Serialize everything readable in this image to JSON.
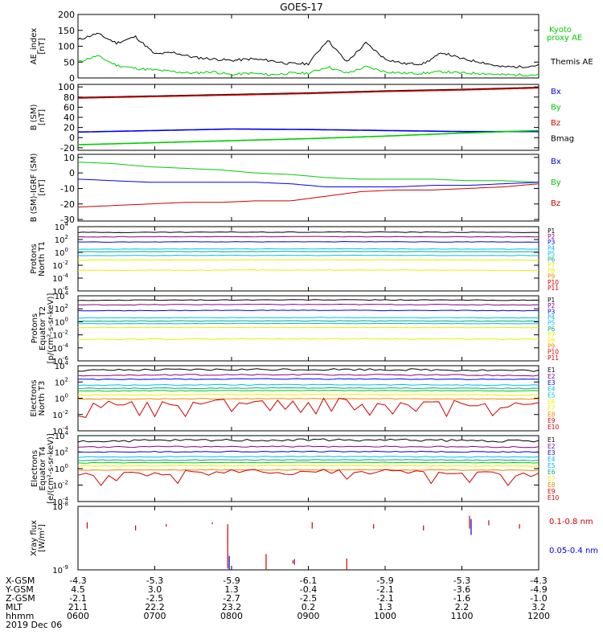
{
  "title": "GOES-17",
  "date_label": "2019 Dec 06",
  "colors": {
    "black": "#000000",
    "green": "#00cc00",
    "blue": "#0000ee",
    "red": "#cc0000",
    "purple": "#880088",
    "cyan": "#00bbee",
    "teal": "#00aa88",
    "yellow": "#eeee00",
    "orange": "#ee8800"
  },
  "chart_data": [
    {
      "type": "line",
      "ylabel": [
        "AE_index",
        "[nT]"
      ],
      "ylim": [
        0,
        200
      ],
      "yticks": [
        "200",
        "150",
        "100",
        "50",
        "0"
      ],
      "legend": [
        {
          "name": "Kyoto",
          "color": "#00cc00"
        },
        {
          "name": "proxy AE",
          "color": "#00cc00"
        },
        {
          "name": "Themis AE",
          "color": "#000000"
        }
      ],
      "x": [
        6.0,
        6.25,
        6.5,
        6.75,
        7.0,
        7.25,
        7.5,
        7.75,
        8.0,
        8.25,
        8.5,
        8.75,
        9.0,
        9.25,
        9.5,
        9.75,
        10.0,
        10.25,
        10.5,
        10.75,
        11.0,
        11.25,
        11.5,
        11.75,
        12.0
      ],
      "series": [
        {
          "color": "#000000",
          "values": [
            120,
            140,
            110,
            130,
            75,
            80,
            65,
            60,
            55,
            60,
            55,
            45,
            45,
            120,
            50,
            110,
            60,
            45,
            45,
            80,
            60,
            50,
            35,
            35,
            40
          ]
        },
        {
          "color": "#00cc00",
          "values": [
            50,
            70,
            40,
            30,
            25,
            20,
            15,
            20,
            10,
            15,
            10,
            15,
            15,
            35,
            15,
            35,
            20,
            15,
            15,
            20,
            15,
            15,
            10,
            10,
            10
          ]
        }
      ]
    },
    {
      "type": "line",
      "ylabel": [
        "B (SM)",
        "[nT]"
      ],
      "ylim": [
        -25,
        105
      ],
      "yticks": [
        "100",
        "80",
        "60",
        "40",
        "20",
        "0",
        "-20"
      ],
      "legend": [
        {
          "name": "Bx",
          "color": "#0000ee"
        },
        {
          "name": "By",
          "color": "#00cc00"
        },
        {
          "name": "Bz",
          "color": "#cc0000"
        },
        {
          "name": "Bmag",
          "color": "#000000"
        }
      ],
      "x": [
        6.0,
        7.0,
        8.0,
        9.0,
        10.0,
        11.0,
        12.0
      ],
      "series": [
        {
          "color": "#000000",
          "values": [
            79,
            82,
            85,
            88,
            92,
            95,
            99
          ]
        },
        {
          "color": "#cc0000",
          "values": [
            78,
            81,
            84,
            87,
            91,
            94,
            98
          ]
        },
        {
          "color": "#0000ee",
          "values": [
            11,
            14,
            17,
            16,
            14,
            12,
            12
          ]
        },
        {
          "color": "#00cc00",
          "values": [
            -14,
            -10,
            -6,
            -2,
            3,
            9,
            14
          ]
        }
      ]
    },
    {
      "type": "line",
      "ylabel": [
        "B (SM)-IGRF (SM)",
        "[nT]"
      ],
      "ylim": [
        -31,
        12
      ],
      "yticks": [
        "10",
        "0",
        "-10",
        "-20",
        "-30"
      ],
      "legend": [
        {
          "name": "Bx",
          "color": "#0000ee"
        },
        {
          "name": "By",
          "color": "#00cc00"
        },
        {
          "name": "Bz",
          "color": "#cc0000"
        }
      ],
      "x": [
        6.0,
        6.5,
        7.0,
        7.5,
        8.0,
        8.5,
        8.75,
        9.0,
        9.5,
        10.0,
        10.5,
        11.0,
        11.5,
        12.0
      ],
      "series": [
        {
          "color": "#00cc00",
          "values": [
            7,
            6,
            4,
            3,
            2,
            0,
            -1,
            -3,
            -4,
            -4,
            -4,
            -5,
            -5,
            -6
          ]
        },
        {
          "color": "#0000ee",
          "values": [
            -4,
            -5,
            -6,
            -6,
            -6,
            -6,
            -7,
            -9,
            -9,
            -9,
            -8,
            -8,
            -7,
            -6
          ]
        },
        {
          "color": "#cc0000",
          "values": [
            -22,
            -21,
            -20,
            -19,
            -19,
            -18,
            -18,
            -15,
            -12,
            -11,
            -11,
            -10,
            -9,
            -7
          ]
        }
      ]
    },
    {
      "type": "line",
      "log": true,
      "ylabel": [
        "Protons",
        "North T1"
      ],
      "ylim_exp": [
        -6,
        4
      ],
      "ytick_exps": [
        4,
        2,
        0,
        -2,
        -4,
        -6
      ],
      "legend": [
        {
          "name": "P1",
          "color": "#000000"
        },
        {
          "name": "P2",
          "color": "#880088"
        },
        {
          "name": "P3",
          "color": "#0000ee"
        },
        {
          "name": "P4",
          "color": "#00bbee"
        },
        {
          "name": "P5",
          "color": "#00bbee"
        },
        {
          "name": "P6",
          "color": "#00aa88"
        },
        {
          "name": "P7",
          "color": "#eeee00"
        },
        {
          "name": "P8",
          "color": "#eeee00"
        },
        {
          "name": "P9",
          "color": "#ee8800"
        },
        {
          "name": "P10",
          "color": "#cc0000"
        },
        {
          "name": "P11",
          "color": "#cc0000"
        }
      ],
      "series": [
        {
          "color": "#000000",
          "level": 3.1,
          "amp": 0.1
        },
        {
          "color": "#880088",
          "level": 2.4,
          "amp": 0.08
        },
        {
          "color": "#0000ee",
          "level": 1.6,
          "amp": 0.08
        },
        {
          "color": "#00bbee",
          "level": 0.5,
          "amp": 0.06
        },
        {
          "color": "#00aa88",
          "level": 0.1,
          "amp": 0.06
        },
        {
          "color": "#00bbee",
          "level": -0.5,
          "amp": 0.06
        },
        {
          "color": "#eeee00",
          "level": -1.2,
          "amp": 0.06
        },
        {
          "color": "#eeee00",
          "level": -2.8,
          "amp": 0.1
        }
      ]
    },
    {
      "type": "line",
      "log": true,
      "ylabel": [
        "Protons",
        "Equator T2",
        "[p/(cm²-s-sr-keV)]"
      ],
      "ylim_exp": [
        -6,
        4
      ],
      "ytick_exps": [
        4,
        2,
        0,
        -2,
        -4,
        -6
      ],
      "legend": [
        {
          "name": "P1",
          "color": "#000000"
        },
        {
          "name": "P2",
          "color": "#880088"
        },
        {
          "name": "P3",
          "color": "#0000ee"
        },
        {
          "name": "P4",
          "color": "#00bbee"
        },
        {
          "name": "P5",
          "color": "#00bbee"
        },
        {
          "name": "P6",
          "color": "#00aa88"
        },
        {
          "name": "P7",
          "color": "#eeee00"
        },
        {
          "name": "P8",
          "color": "#eeee00"
        },
        {
          "name": "P9",
          "color": "#ee8800"
        },
        {
          "name": "P10",
          "color": "#cc0000"
        },
        {
          "name": "P11",
          "color": "#cc0000"
        }
      ],
      "series": [
        {
          "color": "#000000",
          "level": 3.3,
          "amp": 0.12
        },
        {
          "color": "#880088",
          "level": 2.6,
          "amp": 0.1
        },
        {
          "color": "#0000ee",
          "level": 1.7,
          "amp": 0.1
        },
        {
          "color": "#00bbee",
          "level": 0.6,
          "amp": 0.08
        },
        {
          "color": "#00aa88",
          "level": 0.1,
          "amp": 0.08
        },
        {
          "color": "#00bbee",
          "level": -0.3,
          "amp": 0.06
        },
        {
          "color": "#eeee00",
          "level": -0.9,
          "amp": 0.06
        },
        {
          "color": "#eeee00",
          "level": -2.7,
          "amp": 0.15
        }
      ]
    },
    {
      "type": "line",
      "log": true,
      "ylabel": [
        "Electrons",
        "North T3"
      ],
      "ylim_exp": [
        -4,
        4
      ],
      "ytick_exps": [
        4,
        2,
        0,
        -2,
        -4
      ],
      "legend": [
        {
          "name": "E1",
          "color": "#000000"
        },
        {
          "name": "E2",
          "color": "#880088"
        },
        {
          "name": "E3",
          "color": "#0000ee"
        },
        {
          "name": "E4",
          "color": "#00bbee"
        },
        {
          "name": "E5",
          "color": "#00bbee"
        },
        {
          "name": "E6",
          "color": "#eeee00"
        },
        {
          "name": "E7",
          "color": "#eeee00"
        },
        {
          "name": "E8",
          "color": "#ee8800"
        },
        {
          "name": "E9",
          "color": "#cc0000"
        },
        {
          "name": "E10",
          "color": "#cc0000"
        }
      ],
      "series": [
        {
          "color": "#000000",
          "level": 3.4,
          "amp": 0.25
        },
        {
          "color": "#880088",
          "level": 2.8,
          "amp": 0.15
        },
        {
          "color": "#0000ee",
          "level": 2.3,
          "amp": 0.12
        },
        {
          "color": "#00bbee",
          "level": 1.6,
          "amp": 0.1
        },
        {
          "color": "#00aa88",
          "level": 1.2,
          "amp": 0.1
        },
        {
          "color": "#00cc00",
          "level": 0.9,
          "amp": 0.08
        },
        {
          "color": "#eeee00",
          "level": 0.4,
          "amp": 0.08
        },
        {
          "color": "#ee8800",
          "level": -0.1,
          "amp": 0.08
        },
        {
          "color": "#cc0000",
          "level": -0.9,
          "amp": 0.9,
          "spiky": true
        }
      ]
    },
    {
      "type": "line",
      "log": true,
      "ylabel": [
        "Electrons",
        "Equator T4",
        "[e/(cm²-s-sr-keV)]"
      ],
      "ylim_exp": [
        -4,
        4
      ],
      "ytick_exps": [
        4,
        2,
        0,
        -2,
        -4
      ],
      "legend": [
        {
          "name": "E1",
          "color": "#000000"
        },
        {
          "name": "E2",
          "color": "#880088"
        },
        {
          "name": "E3",
          "color": "#0000ee"
        },
        {
          "name": "E4",
          "color": "#00bbee"
        },
        {
          "name": "E5",
          "color": "#00bbee"
        },
        {
          "name": "E6",
          "color": "#00aa88"
        },
        {
          "name": "E7",
          "color": "#eeee00"
        },
        {
          "name": "E8",
          "color": "#ee8800"
        },
        {
          "name": "E9",
          "color": "#cc0000"
        },
        {
          "name": "E10",
          "color": "#cc0000"
        }
      ],
      "series": [
        {
          "color": "#000000",
          "level": 3.3,
          "amp": 0.3
        },
        {
          "color": "#880088",
          "level": 2.6,
          "amp": 0.15
        },
        {
          "color": "#0000ee",
          "level": 2.0,
          "amp": 0.12
        },
        {
          "color": "#00bbee",
          "level": 1.4,
          "amp": 0.1
        },
        {
          "color": "#00aa88",
          "level": 1.0,
          "amp": 0.1
        },
        {
          "color": "#00cc00",
          "level": 0.7,
          "amp": 0.08
        },
        {
          "color": "#eeee00",
          "level": 0.3,
          "amp": 0.08
        },
        {
          "color": "#ee8800",
          "level": -0.2,
          "amp": 0.08
        },
        {
          "color": "#cc0000",
          "level": -0.8,
          "amp": 0.7,
          "spiky": true
        }
      ]
    },
    {
      "type": "line",
      "log": true,
      "ylabel": [
        "Xray flux",
        "[W/m²]"
      ],
      "ylim_exp": [
        -9,
        -8
      ],
      "ytick_exps": [
        -8,
        -9
      ],
      "legend": [
        {
          "name": "0.1-0.8 nm",
          "color": "#cc0000"
        },
        {
          "name": "0.05-0.4 nm",
          "color": "#0000ee"
        }
      ],
      "segments": [
        {
          "color": "#cc0000",
          "t": 6.12,
          "y1": -8.35,
          "y2": -8.25
        },
        {
          "color": "#cc0000",
          "t": 6.75,
          "y1": -8.38,
          "y2": -8.3
        },
        {
          "color": "#cc0000",
          "t": 7.15,
          "y1": -8.32,
          "y2": -8.28
        },
        {
          "color": "#cc0000",
          "t": 7.75,
          "y1": -8.28,
          "y2": -8.25
        },
        {
          "color": "#cc0000",
          "t": 7.95,
          "y1": -8.98,
          "y2": -8.28
        },
        {
          "color": "#0000ee",
          "t": 7.97,
          "y1": -9.0,
          "y2": -8.78
        },
        {
          "color": "#cc0000",
          "t": 8.45,
          "y1": -9.0,
          "y2": -8.75
        },
        {
          "color": "#cc0000",
          "t": 8.8,
          "y1": -8.9,
          "y2": -8.85
        },
        {
          "color": "#880088",
          "t": 8.82,
          "y1": -8.92,
          "y2": -8.83
        },
        {
          "color": "#cc0000",
          "t": 9.05,
          "y1": -8.35,
          "y2": -8.25
        },
        {
          "color": "#cc0000",
          "t": 9.5,
          "y1": -9.0,
          "y2": -8.82
        },
        {
          "color": "#cc0000",
          "t": 9.85,
          "y1": -8.35,
          "y2": -8.28
        },
        {
          "color": "#cc0000",
          "t": 10.5,
          "y1": -8.38,
          "y2": -8.3
        },
        {
          "color": "#cc0000",
          "t": 11.1,
          "y1": -8.35,
          "y2": -8.15
        },
        {
          "color": "#0000ee",
          "t": 11.12,
          "y1": -8.45,
          "y2": -8.2
        },
        {
          "color": "#cc0000",
          "t": 11.35,
          "y1": -8.3,
          "y2": -8.22
        },
        {
          "color": "#cc0000",
          "t": 11.75,
          "y1": -8.35,
          "y2": -8.28
        }
      ]
    }
  ],
  "footer": {
    "row_labels": [
      "X-GSM",
      "Y-GSM",
      "Z-GSM",
      "MLT",
      "hhmm"
    ],
    "columns": [
      {
        "x_gsm": "-4.3",
        "y_gsm": "4.5",
        "z_gsm": "-2.1",
        "mlt": "21.1",
        "hhmm": "0600"
      },
      {
        "x_gsm": "-5.3",
        "y_gsm": "3.0",
        "z_gsm": "-2.5",
        "mlt": "22.2",
        "hhmm": "0700"
      },
      {
        "x_gsm": "-5.9",
        "y_gsm": "1.3",
        "z_gsm": "-2.7",
        "mlt": "23.2",
        "hhmm": "0800"
      },
      {
        "x_gsm": "-6.1",
        "y_gsm": "-0.4",
        "z_gsm": "-2.5",
        "mlt": "0.2",
        "hhmm": "0900"
      },
      {
        "x_gsm": "-5.9",
        "y_gsm": "-2.1",
        "z_gsm": "-2.1",
        "mlt": "1.3",
        "hhmm": "1000"
      },
      {
        "x_gsm": "-5.3",
        "y_gsm": "-3.6",
        "z_gsm": "-1.6",
        "mlt": "2.2",
        "hhmm": "1100"
      },
      {
        "x_gsm": "-4.3",
        "y_gsm": "-4.9",
        "z_gsm": "-1.0",
        "mlt": "3.2",
        "hhmm": "1200"
      }
    ]
  }
}
